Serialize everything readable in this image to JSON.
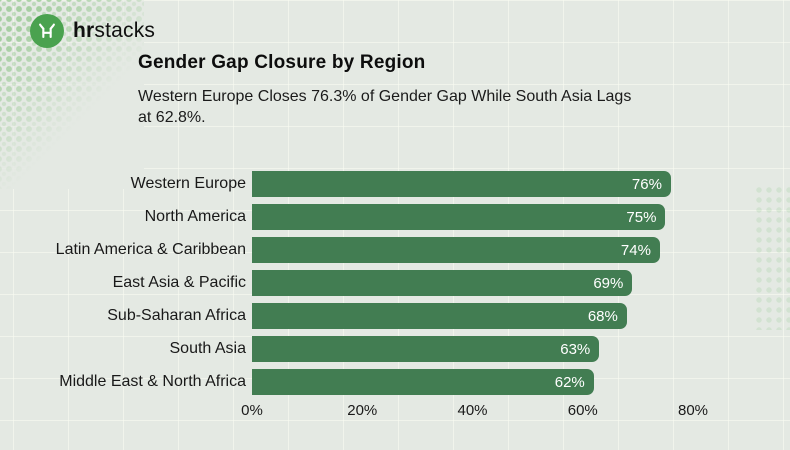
{
  "brand": {
    "name_bold": "hr",
    "name_regular": "stacks"
  },
  "header": {
    "title": "Gender Gap Closure by Region",
    "subtitle_line1": "Western Europe Closes 76.3% of Gender Gap While South Asia Lags",
    "subtitle_line2": "at 62.8%."
  },
  "chart_data": {
    "type": "bar",
    "orientation": "horizontal",
    "title": "Gender Gap Closure by Region",
    "subtitle": "Western Europe Closes 76.3% of Gender Gap While South Asia Lags at 62.8%.",
    "categories": [
      "Western Europe",
      "North America",
      "Latin America & Caribbean",
      "East Asia & Pacific",
      "Sub-Saharan Africa",
      "South Asia",
      "Middle East & North Africa"
    ],
    "values": [
      76,
      75,
      74,
      69,
      68,
      63,
      62
    ],
    "value_labels": [
      "76%",
      "75%",
      "74%",
      "69%",
      "68%",
      "63%",
      "62%"
    ],
    "x_ticks": [
      "0%",
      "20%",
      "40%",
      "60%",
      "80%"
    ],
    "x_tick_values": [
      0,
      20,
      40,
      60,
      80
    ],
    "xlim": [
      0,
      80
    ],
    "xlabel": "",
    "ylabel": "",
    "legend": "none",
    "grid": "faint background wall grid",
    "bar_color": "#427D52",
    "value_label_color": "#FFFFFF"
  },
  "colors": {
    "background": "#E4E9E3",
    "accent_green": "#427D52",
    "logo_green": "#4AA24F",
    "halftone_dot": "#74BA6E",
    "text_dark": "#161616"
  }
}
